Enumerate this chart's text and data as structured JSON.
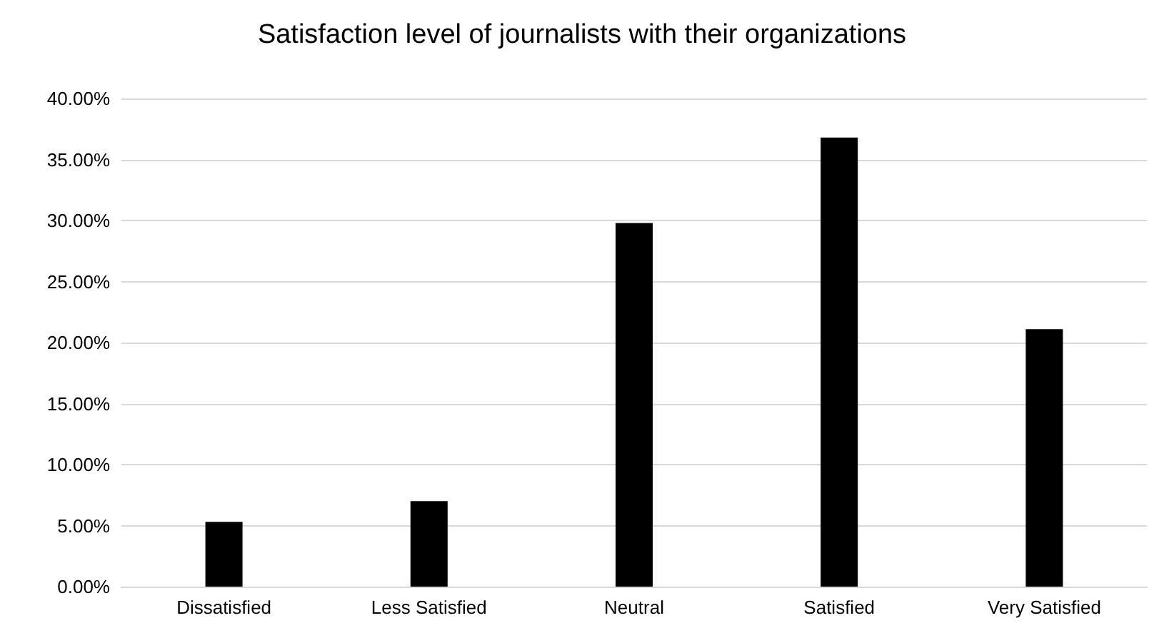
{
  "chart_data": {
    "type": "bar",
    "title": "Satisfaction level of journalists with their organizations",
    "categories": [
      "Dissatisfied",
      "Less Satisfied",
      "Neutral",
      "Satisfied",
      "Very Satisfied"
    ],
    "values": [
      5.3,
      7.0,
      29.8,
      36.8,
      21.1
    ],
    "color": "#000000",
    "ylim": [
      0,
      40
    ],
    "yticks": [
      {
        "value": 0,
        "label": "0.00%"
      },
      {
        "value": 5,
        "label": "5.00%"
      },
      {
        "value": 10,
        "label": "10.00%"
      },
      {
        "value": 15,
        "label": "15.00%"
      },
      {
        "value": 20,
        "label": "20.00%"
      },
      {
        "value": 25,
        "label": "25.00%"
      },
      {
        "value": 30,
        "label": "30.00%"
      },
      {
        "value": 35,
        "label": "35.00%"
      },
      {
        "value": 40,
        "label": "40.00%"
      }
    ],
    "grid": "y"
  }
}
